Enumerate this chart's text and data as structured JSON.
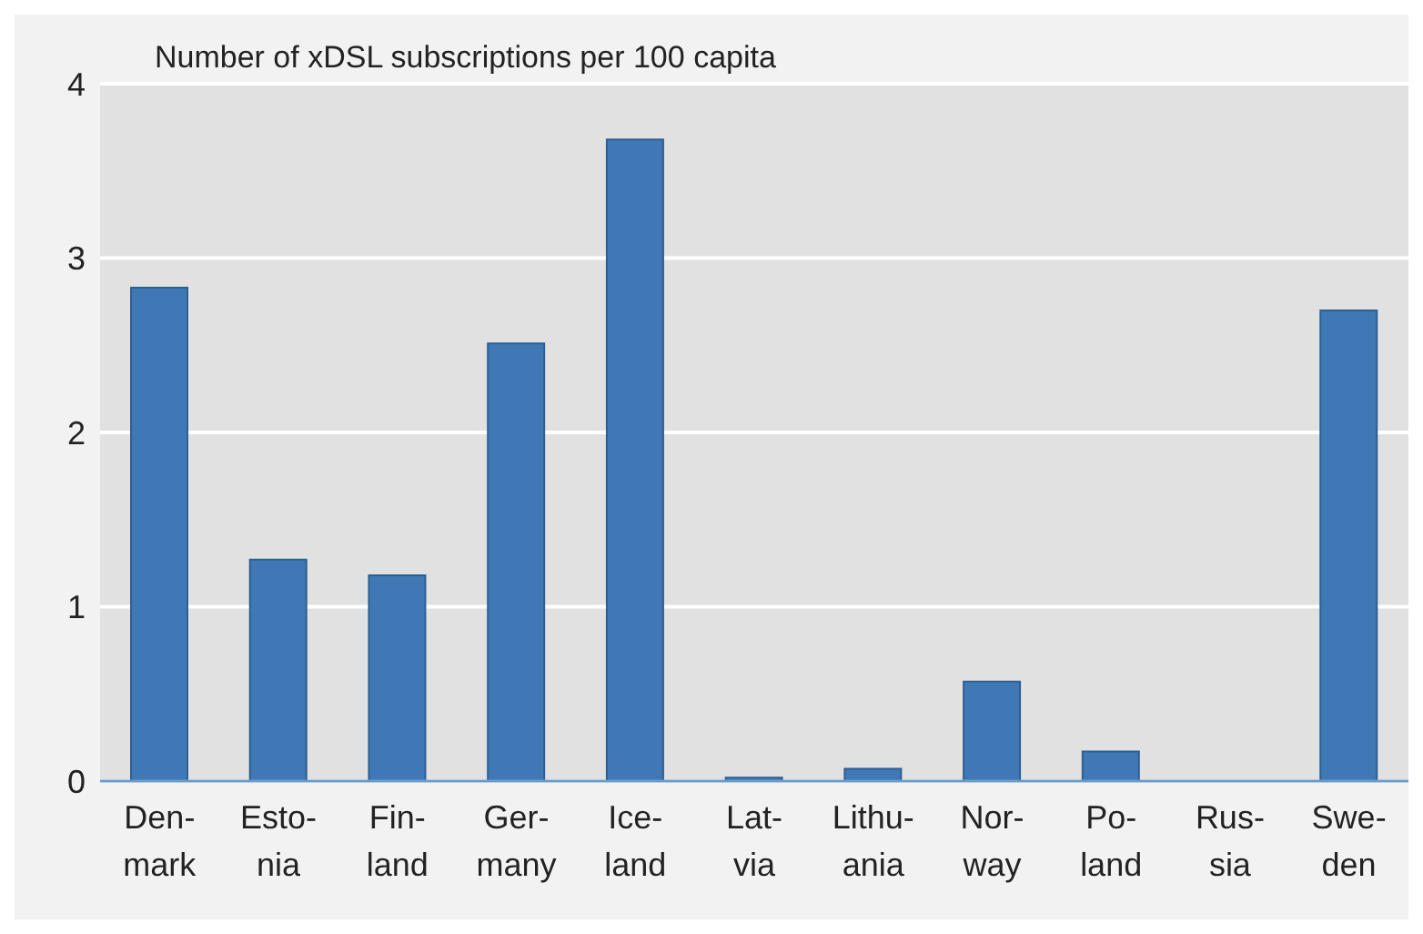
{
  "chart_data": {
    "type": "bar",
    "title": "Number of xDSL subscriptions per 100 capita",
    "categories": [
      "Den-\nmark",
      "Esto-\nnia",
      "Fin-\nland",
      "Ger-\nmany",
      "Ice-\nland",
      "Lat-\nvia",
      "Lithu-\nania",
      "Nor-\nway",
      "Po-\nland",
      "Rus-\nsia",
      "Swe-\nden"
    ],
    "values": [
      2.83,
      1.27,
      1.18,
      2.51,
      3.68,
      0.02,
      0.07,
      0.57,
      0.17,
      0,
      2.7
    ],
    "color": "#3f78b4",
    "ylim": [
      0,
      4
    ],
    "yticks": [
      0,
      1,
      2,
      3,
      4
    ],
    "grid": "y"
  }
}
